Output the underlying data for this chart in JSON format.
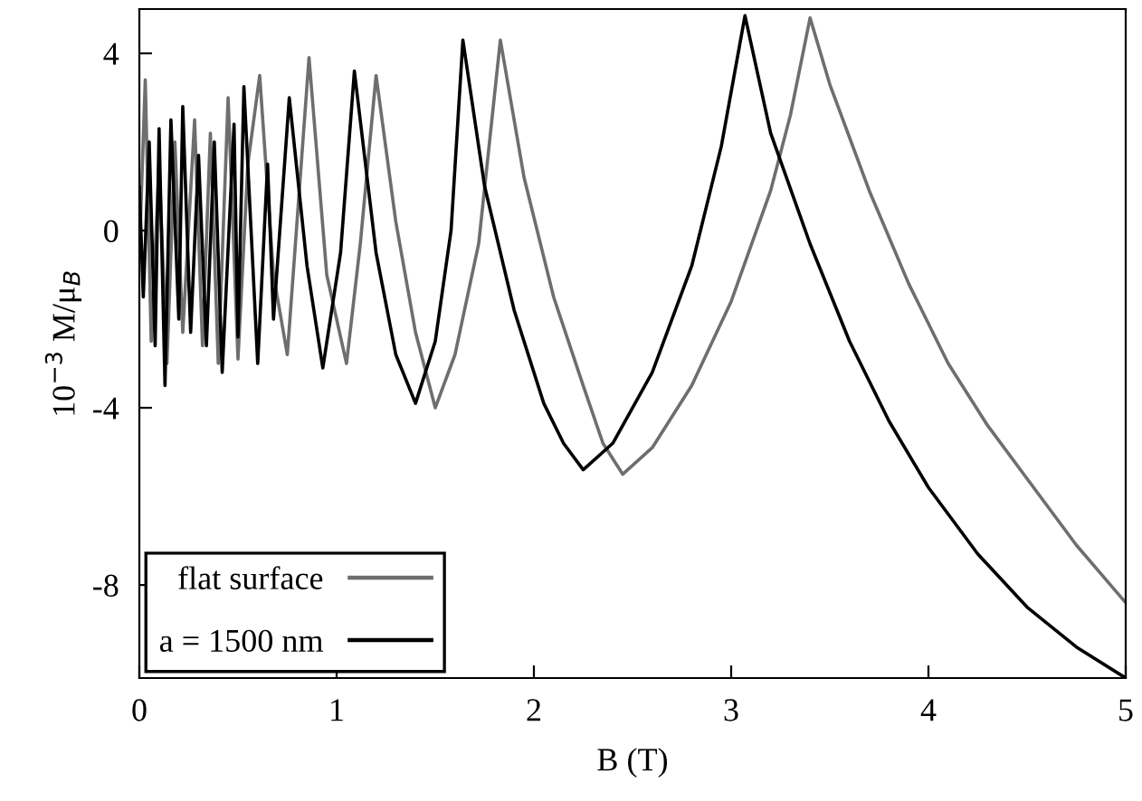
{
  "chart_data": {
    "type": "line",
    "xlabel": "B (T)",
    "ylabel": "10$^{−3}$ M/μ$_{B}$",
    "series": [
      {
        "name": "flat surface",
        "color": "#6e6e6e",
        "x": [
          0,
          0.03,
          0.06,
          0.1,
          0.14,
          0.18,
          0.22,
          0.28,
          0.32,
          0.36,
          0.4,
          0.45,
          0.5,
          0.55,
          0.61,
          0.68,
          0.75,
          0.86,
          0.95,
          1.05,
          1.12,
          1.2,
          1.3,
          1.4,
          1.5,
          1.6,
          1.72,
          1.83,
          1.95,
          2.1,
          2.25,
          2.35,
          2.45,
          2.6,
          2.8,
          3.0,
          3.2,
          3.3,
          3.4,
          3.5,
          3.7,
          3.9,
          4.1,
          4.3,
          4.5,
          4.75,
          5.0
        ],
        "values": [
          -0.5,
          3.4,
          -2.5,
          1.5,
          -3.0,
          2.0,
          -2.3,
          2.5,
          -2.6,
          2.2,
          -3.0,
          3.0,
          -2.9,
          1.5,
          3.5,
          -1.0,
          -2.8,
          3.9,
          -1.0,
          -3.0,
          -0.3,
          3.5,
          0.2,
          -2.3,
          -4.0,
          -2.8,
          -0.3,
          4.3,
          1.2,
          -1.5,
          -3.5,
          -4.8,
          -5.5,
          -4.9,
          -3.5,
          -1.6,
          0.9,
          2.6,
          4.8,
          3.3,
          0.9,
          -1.2,
          -3.0,
          -4.4,
          -5.6,
          -7.1,
          -8.4
        ]
      },
      {
        "name": "a = 1500 nm",
        "color": "#000000",
        "x": [
          0,
          0.02,
          0.05,
          0.08,
          0.1,
          0.13,
          0.16,
          0.2,
          0.22,
          0.26,
          0.3,
          0.34,
          0.38,
          0.42,
          0.48,
          0.5,
          0.53,
          0.6,
          0.65,
          0.68,
          0.76,
          0.85,
          0.93,
          1.02,
          1.09,
          1.2,
          1.3,
          1.4,
          1.5,
          1.58,
          1.64,
          1.75,
          1.9,
          2.05,
          2.15,
          2.25,
          2.4,
          2.6,
          2.8,
          2.95,
          3.07,
          3.2,
          3.4,
          3.6,
          3.8,
          4.0,
          4.25,
          4.5,
          4.75,
          5.0
        ],
        "values": [
          1.0,
          -1.5,
          2.0,
          -2.6,
          2.3,
          -3.5,
          2.5,
          -2.0,
          2.8,
          -2.3,
          1.7,
          -2.6,
          2.0,
          -3.2,
          2.4,
          -2.4,
          3.25,
          -3.0,
          1.5,
          -2.0,
          3.0,
          -0.8,
          -3.1,
          -0.5,
          3.6,
          -0.5,
          -2.8,
          -3.9,
          -2.5,
          0.0,
          4.3,
          1.0,
          -1.8,
          -3.9,
          -4.8,
          -5.4,
          -4.8,
          -3.2,
          -0.8,
          1.9,
          4.85,
          2.2,
          -0.3,
          -2.5,
          -4.3,
          -5.8,
          -7.3,
          -8.5,
          -9.4,
          -10.1
        ]
      }
    ],
    "xlim": [
      0,
      5
    ],
    "xticks": [
      0,
      1,
      2,
      3,
      4,
      5
    ],
    "ylim": [
      -10.1,
      5.0
    ],
    "yticks": [
      {
        "value": -8,
        "label": "-8"
      },
      {
        "value": -4,
        "label": "-4"
      },
      0,
      4
    ],
    "legend": "bottom left",
    "grid": false,
    "line_style": "solid",
    "marker": "none"
  }
}
